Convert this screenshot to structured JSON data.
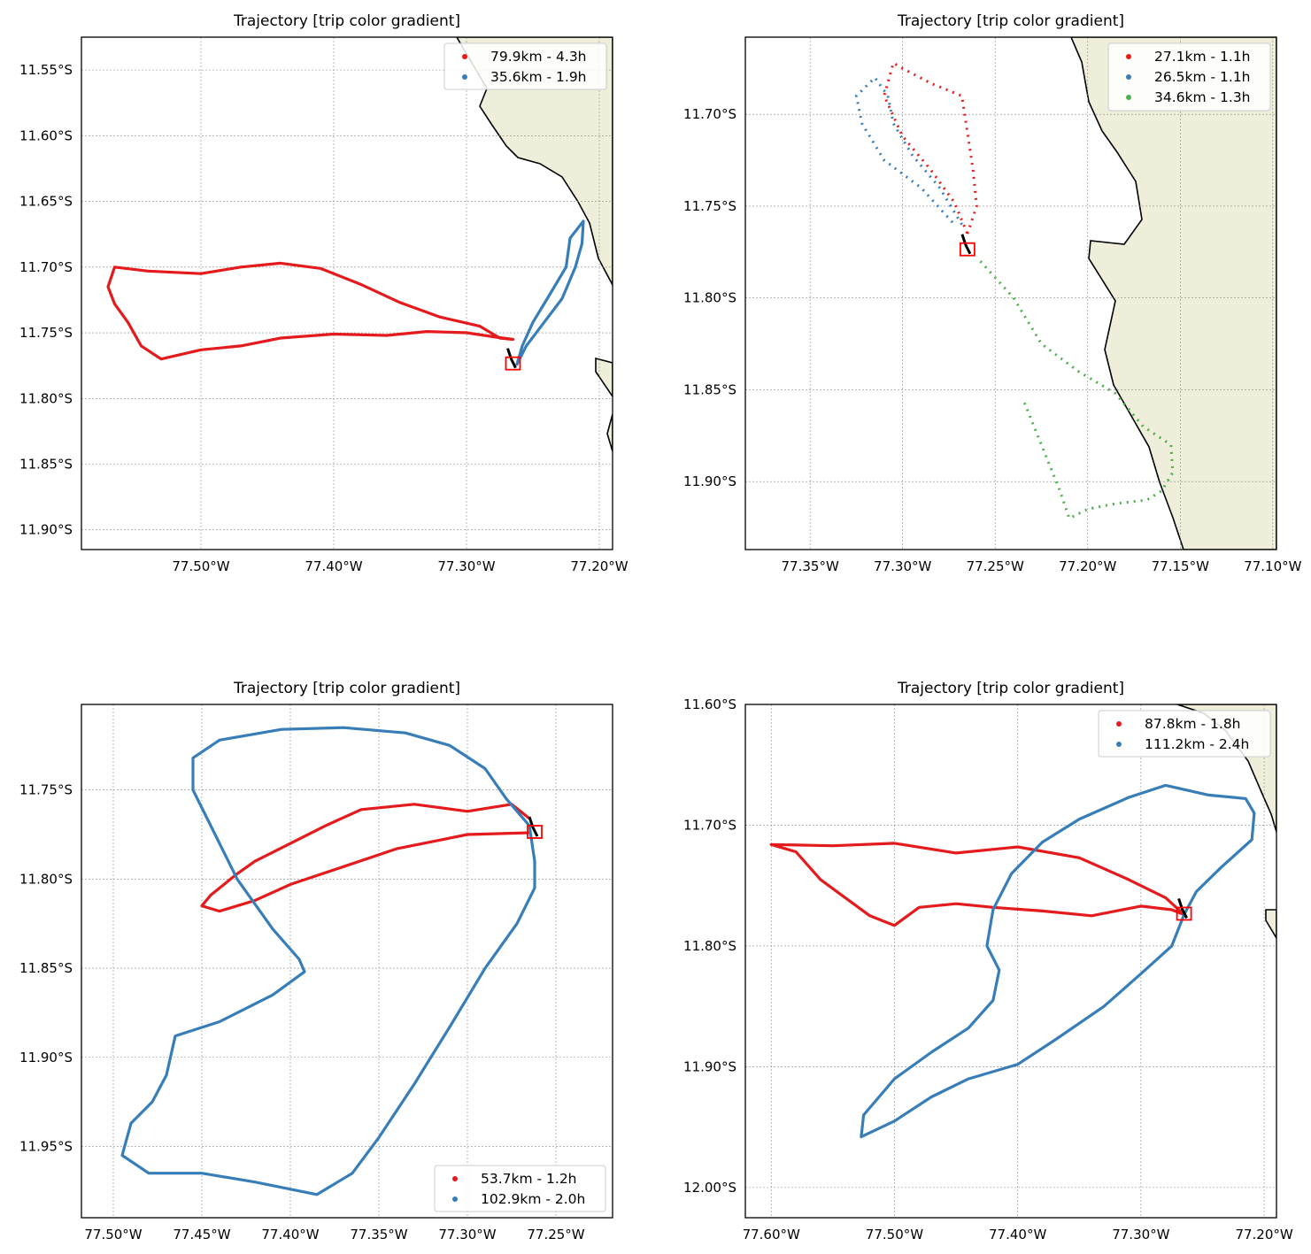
{
  "chart_data": [
    {
      "type": "scatter",
      "title": "Trajectory [trip color gradient]",
      "xlim": [
        -77.59,
        -77.19
      ],
      "ylim": [
        -11.915,
        -11.525
      ],
      "x_ticks": [
        "77.50°W",
        "77.40°W",
        "77.30°W",
        "77.20°W"
      ],
      "y_ticks": [
        "11.55°S",
        "11.60°S",
        "11.65°S",
        "11.70°S",
        "11.75°S",
        "11.80°S",
        "11.85°S",
        "11.90°S"
      ],
      "grid": true,
      "legend_placement": "upper-right",
      "base": [
        -77.265,
        -11.774
      ],
      "series": [
        {
          "name": "79.9km - 4.3h",
          "color": "#e41a1c",
          "points": [
            [
              -77.265,
              -11.755
            ],
            [
              -77.28,
              -11.753
            ],
            [
              -77.3,
              -11.75
            ],
            [
              -77.33,
              -11.749
            ],
            [
              -77.36,
              -11.752
            ],
            [
              -77.4,
              -11.751
            ],
            [
              -77.44,
              -11.754
            ],
            [
              -77.47,
              -11.76
            ],
            [
              -77.5,
              -11.763
            ],
            [
              -77.53,
              -11.77
            ],
            [
              -77.545,
              -11.76
            ],
            [
              -77.555,
              -11.742
            ],
            [
              -77.565,
              -11.728
            ],
            [
              -77.57,
              -11.715
            ],
            [
              -77.565,
              -11.7
            ],
            [
              -77.54,
              -11.703
            ],
            [
              -77.5,
              -11.705
            ],
            [
              -77.47,
              -11.7
            ],
            [
              -77.44,
              -11.697
            ],
            [
              -77.41,
              -11.701
            ],
            [
              -77.38,
              -11.713
            ],
            [
              -77.35,
              -11.727
            ],
            [
              -77.32,
              -11.738
            ],
            [
              -77.29,
              -11.745
            ],
            [
              -77.275,
              -11.754
            ],
            [
              -77.265,
              -11.755
            ]
          ]
        },
        {
          "name": "35.6km - 1.9h",
          "color": "#377eb8",
          "points": [
            [
              -77.262,
              -11.774
            ],
            [
              -77.255,
              -11.76
            ],
            [
              -77.24,
              -11.74
            ],
            [
              -77.228,
              -11.724
            ],
            [
              -77.218,
              -11.7
            ],
            [
              -77.213,
              -11.682
            ],
            [
              -77.212,
              -11.665
            ],
            [
              -77.222,
              -11.678
            ],
            [
              -77.225,
              -11.7
            ],
            [
              -77.238,
              -11.722
            ],
            [
              -77.25,
              -11.742
            ],
            [
              -77.258,
              -11.76
            ],
            [
              -77.262,
              -11.774
            ]
          ]
        }
      ]
    },
    {
      "type": "scatter",
      "title": "Trajectory [trip color gradient]",
      "xlim": [
        -77.385,
        -77.098
      ],
      "ylim": [
        -11.937,
        -11.658
      ],
      "x_ticks": [
        "77.35°W",
        "77.30°W",
        "77.25°W",
        "77.20°W",
        "77.15°W",
        "77.10°W"
      ],
      "y_ticks": [
        "11.70°S",
        "11.75°S",
        "11.80°S",
        "11.85°S",
        "11.90°S"
      ],
      "grid": true,
      "legend_placement": "upper-right",
      "base": [
        -77.265,
        -11.774
      ],
      "series": [
        {
          "name": "27.1km - 1.1h",
          "color": "#e41a1c",
          "points": [
            [
              -77.265,
              -11.765
            ],
            [
              -77.26,
              -11.75
            ],
            [
              -77.262,
              -11.73
            ],
            [
              -77.265,
              -11.71
            ],
            [
              -77.268,
              -11.69
            ],
            [
              -77.285,
              -11.683
            ],
            [
              -77.3,
              -11.675
            ],
            [
              -77.305,
              -11.672
            ],
            [
              -77.31,
              -11.69
            ],
            [
              -77.3,
              -11.712
            ],
            [
              -77.285,
              -11.73
            ],
            [
              -77.272,
              -11.748
            ],
            [
              -77.265,
              -11.765
            ]
          ]
        },
        {
          "name": "26.5km - 1.1h",
          "color": "#377eb8",
          "points": [
            [
              -77.268,
              -11.76
            ],
            [
              -77.28,
              -11.74
            ],
            [
              -77.295,
              -11.722
            ],
            [
              -77.305,
              -11.705
            ],
            [
              -77.308,
              -11.69
            ],
            [
              -77.315,
              -11.68
            ],
            [
              -77.325,
              -11.69
            ],
            [
              -77.322,
              -11.705
            ],
            [
              -77.31,
              -11.725
            ],
            [
              -77.29,
              -11.74
            ],
            [
              -77.272,
              -11.76
            ]
          ]
        },
        {
          "name": "34.6km - 1.3h",
          "color": "#4daf4a",
          "points": [
            [
              -77.258,
              -11.78
            ],
            [
              -77.24,
              -11.8
            ],
            [
              -77.225,
              -11.825
            ],
            [
              -77.205,
              -11.84
            ],
            [
              -77.185,
              -11.852
            ],
            [
              -77.17,
              -11.87
            ],
            [
              -77.155,
              -11.88
            ],
            [
              -77.154,
              -11.895
            ],
            [
              -77.16,
              -11.905
            ],
            [
              -77.168,
              -11.91
            ],
            [
              -77.185,
              -11.912
            ],
            [
              -77.2,
              -11.915
            ],
            [
              -77.21,
              -11.92
            ],
            [
              -77.215,
              -11.905
            ],
            [
              -77.225,
              -11.88
            ],
            [
              -77.235,
              -11.855
            ]
          ]
        }
      ]
    },
    {
      "type": "scatter",
      "title": "Trajectory [trip color gradient]",
      "xlim": [
        -77.518,
        -77.218
      ],
      "ylim": [
        -11.99,
        -11.702
      ],
      "x_ticks": [
        "77.50°W",
        "77.45°W",
        "77.40°W",
        "77.35°W",
        "77.30°W",
        "77.25°W"
      ],
      "y_ticks": [
        "11.75°S",
        "11.80°S",
        "11.85°S",
        "11.90°S",
        "11.95°S"
      ],
      "grid": true,
      "legend_placement": "lower-right",
      "base": [
        -77.262,
        -11.774
      ],
      "series": [
        {
          "name": "53.7km - 1.2h",
          "color": "#e41a1c",
          "points": [
            [
              -77.265,
              -11.766
            ],
            [
              -77.275,
              -11.758
            ],
            [
              -77.3,
              -11.762
            ],
            [
              -77.33,
              -11.758
            ],
            [
              -77.36,
              -11.761
            ],
            [
              -77.38,
              -11.77
            ],
            [
              -77.4,
              -11.78
            ],
            [
              -77.42,
              -11.79
            ],
            [
              -77.43,
              -11.797
            ],
            [
              -77.445,
              -11.809
            ],
            [
              -77.45,
              -11.815
            ],
            [
              -77.44,
              -11.818
            ],
            [
              -77.42,
              -11.812
            ],
            [
              -77.4,
              -11.803
            ],
            [
              -77.37,
              -11.793
            ],
            [
              -77.34,
              -11.783
            ],
            [
              -77.3,
              -11.775
            ],
            [
              -77.265,
              -11.774
            ]
          ]
        },
        {
          "name": "102.9km - 2.0h",
          "color": "#377eb8",
          "points": [
            [
              -77.265,
              -11.77
            ],
            [
              -77.278,
              -11.755
            ],
            [
              -77.29,
              -11.738
            ],
            [
              -77.31,
              -11.725
            ],
            [
              -77.335,
              -11.718
            ],
            [
              -77.37,
              -11.715
            ],
            [
              -77.405,
              -11.716
            ],
            [
              -77.44,
              -11.722
            ],
            [
              -77.455,
              -11.732
            ],
            [
              -77.455,
              -11.75
            ],
            [
              -77.445,
              -11.77
            ],
            [
              -77.43,
              -11.8
            ],
            [
              -77.41,
              -11.828
            ],
            [
              -77.395,
              -11.845
            ],
            [
              -77.392,
              -11.852
            ],
            [
              -77.41,
              -11.865
            ],
            [
              -77.44,
              -11.88
            ],
            [
              -77.465,
              -11.888
            ],
            [
              -77.47,
              -11.91
            ],
            [
              -77.478,
              -11.925
            ],
            [
              -77.49,
              -11.937
            ],
            [
              -77.495,
              -11.955
            ],
            [
              -77.48,
              -11.965
            ],
            [
              -77.45,
              -11.965
            ],
            [
              -77.42,
              -11.97
            ],
            [
              -77.385,
              -11.977
            ],
            [
              -77.365,
              -11.965
            ],
            [
              -77.35,
              -11.945
            ],
            [
              -77.33,
              -11.915
            ],
            [
              -77.31,
              -11.883
            ],
            [
              -77.29,
              -11.85
            ],
            [
              -77.272,
              -11.825
            ],
            [
              -77.262,
              -11.805
            ],
            [
              -77.262,
              -11.79
            ],
            [
              -77.265,
              -11.77
            ]
          ]
        }
      ]
    },
    {
      "type": "scatter",
      "title": "Trajectory [trip color gradient]",
      "xlim": [
        -77.621,
        -77.19
      ],
      "ylim": [
        -12.025,
        -11.6
      ],
      "x_ticks": [
        "77.60°W",
        "77.50°W",
        "77.40°W",
        "77.30°W",
        "77.20°W"
      ],
      "y_ticks": [
        "11.60°S",
        "11.70°S",
        "11.80°S",
        "11.90°S",
        "12.00°S"
      ],
      "grid": true,
      "legend_placement": "upper-right",
      "base": [
        -77.265,
        -11.774
      ],
      "series": [
        {
          "name": "87.8km - 1.8h",
          "color": "#e41a1c",
          "points": [
            [
              -77.265,
              -11.774
            ],
            [
              -77.28,
              -11.76
            ],
            [
              -77.31,
              -11.745
            ],
            [
              -77.35,
              -11.727
            ],
            [
              -77.4,
              -11.718
            ],
            [
              -77.45,
              -11.723
            ],
            [
              -77.5,
              -11.715
            ],
            [
              -77.55,
              -11.717
            ],
            [
              -77.6,
              -11.716
            ],
            [
              -77.58,
              -11.722
            ],
            [
              -77.56,
              -11.745
            ],
            [
              -77.54,
              -11.76
            ],
            [
              -77.52,
              -11.775
            ],
            [
              -77.5,
              -11.783
            ],
            [
              -77.48,
              -11.768
            ],
            [
              -77.45,
              -11.765
            ],
            [
              -77.42,
              -11.768
            ],
            [
              -77.38,
              -11.771
            ],
            [
              -77.34,
              -11.775
            ],
            [
              -77.3,
              -11.767
            ],
            [
              -77.275,
              -11.77
            ],
            [
              -77.265,
              -11.774
            ]
          ]
        },
        {
          "name": "111.2km - 2.4h",
          "color": "#377eb8",
          "points": [
            [
              -77.265,
              -11.774
            ],
            [
              -77.255,
              -11.755
            ],
            [
              -77.235,
              -11.735
            ],
            [
              -77.21,
              -11.712
            ],
            [
              -77.208,
              -11.69
            ],
            [
              -77.215,
              -11.678
            ],
            [
              -77.245,
              -11.675
            ],
            [
              -77.28,
              -11.667
            ],
            [
              -77.31,
              -11.677
            ],
            [
              -77.35,
              -11.695
            ],
            [
              -77.38,
              -11.714
            ],
            [
              -77.405,
              -11.74
            ],
            [
              -77.42,
              -11.77
            ],
            [
              -77.425,
              -11.8
            ],
            [
              -77.415,
              -11.82
            ],
            [
              -77.42,
              -11.845
            ],
            [
              -77.44,
              -11.868
            ],
            [
              -77.47,
              -11.888
            ],
            [
              -77.5,
              -11.91
            ],
            [
              -77.525,
              -11.94
            ],
            [
              -77.527,
              -11.958
            ],
            [
              -77.5,
              -11.945
            ],
            [
              -77.47,
              -11.925
            ],
            [
              -77.44,
              -11.91
            ],
            [
              -77.4,
              -11.898
            ],
            [
              -77.37,
              -11.878
            ],
            [
              -77.33,
              -11.85
            ],
            [
              -77.3,
              -11.823
            ],
            [
              -77.275,
              -11.8
            ],
            [
              -77.265,
              -11.774
            ]
          ]
        }
      ]
    }
  ]
}
